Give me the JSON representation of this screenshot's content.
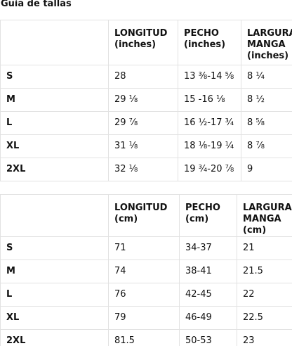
{
  "title": "Guía de tallas",
  "tables": [
    {
      "headers": [
        "",
        [
          "LONGITUD",
          "(inches)"
        ],
        [
          "PECHO",
          "(inches)"
        ],
        [
          "LARGURA",
          "MANGA",
          "(inches)"
        ]
      ],
      "rows": [
        [
          "S",
          "28",
          "13 ⅜-14 ⅝",
          "8 ¼"
        ],
        [
          "M",
          "29 ⅛",
          "15 -16 ⅛",
          "8 ½"
        ],
        [
          "L",
          "29 ⅞",
          "16 ½-17 ¾",
          "8 ⅝"
        ],
        [
          "XL",
          "31 ⅛",
          "18 ⅛-19 ¼",
          "8 ⅞"
        ],
        [
          "2XL",
          "32 ⅛",
          "19 ¾-20 ⅞",
          "9"
        ]
      ]
    },
    {
      "headers": [
        "",
        [
          "LONGITUD",
          "(cm)"
        ],
        [
          "PECHO",
          "(cm)"
        ],
        [
          "LARGURA",
          "MANGA (cm)"
        ]
      ],
      "rows": [
        [
          "S",
          "71",
          "34-37",
          "21"
        ],
        [
          "M",
          "74",
          "38-41",
          "21.5"
        ],
        [
          "L",
          "76",
          "42-45",
          "22"
        ],
        [
          "XL",
          "79",
          "46-49",
          "22.5"
        ],
        [
          "2XL",
          "81.5",
          "50-53",
          "23"
        ]
      ]
    }
  ]
}
